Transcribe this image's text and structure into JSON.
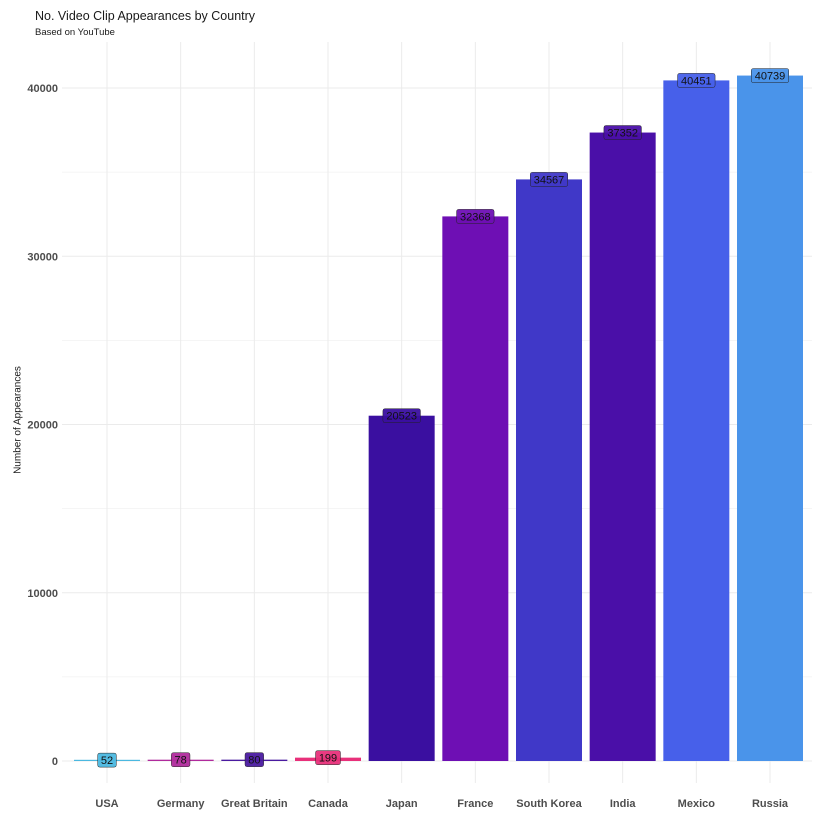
{
  "chart_data": {
    "type": "bar",
    "title": "No. Video Clip Appearances by Country",
    "subtitle": "Based on YouTube",
    "xlabel": "",
    "ylabel": "Number of Appearances",
    "ylim": [
      0,
      42500
    ],
    "yticks": [
      0,
      10000,
      20000,
      30000,
      40000
    ],
    "ytick_labels": [
      "0",
      "10000",
      "20000",
      "30000",
      "40000"
    ],
    "grid": true,
    "categories": [
      "USA",
      "Germany",
      "Great Britain",
      "Canada",
      "Japan",
      "France",
      "South Korea",
      "India",
      "Mexico",
      "Russia"
    ],
    "values": [
      52,
      78,
      80,
      199,
      20523,
      32368,
      34567,
      37352,
      40451,
      40739
    ],
    "value_labels": [
      "52",
      "78",
      "80",
      "199",
      "20523",
      "32368",
      "34567",
      "37352",
      "40451",
      "40739"
    ],
    "colors": [
      "#4bb8e0",
      "#b02a9c",
      "#4a1aa0",
      "#e8307a",
      "#3a0fa0",
      "#6e0fb4",
      "#4038c8",
      "#4a0fa8",
      "#4760ea",
      "#4a94ea"
    ]
  }
}
